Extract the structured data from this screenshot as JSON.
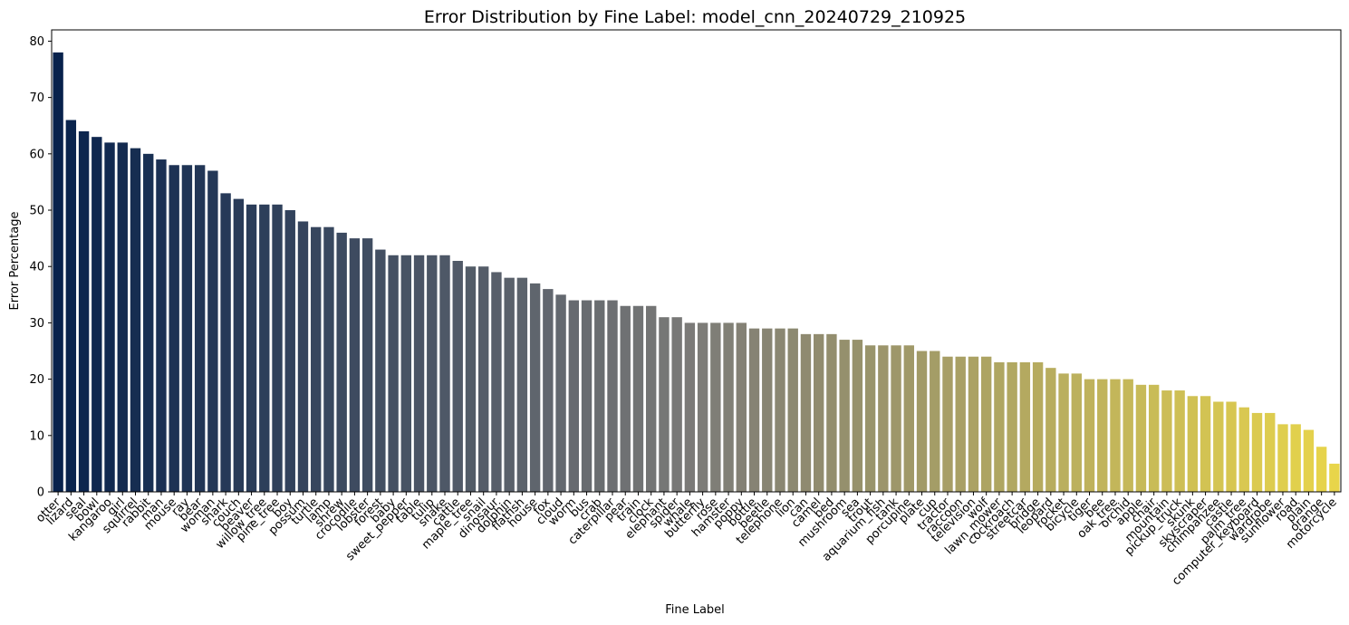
{
  "chart_data": {
    "type": "bar",
    "title": "Error Distribution by Fine Label: model_cnn_20240729_210925",
    "xlabel": "Fine Label",
    "ylabel": "Error Percentage",
    "ylim": [
      0,
      82
    ],
    "yticks": [
      0,
      10,
      20,
      30,
      40,
      50,
      60,
      70,
      80
    ],
    "grid": false,
    "colormap": {
      "start": "#08224c",
      "mid": "#7c7b78",
      "end": "#e8d54a"
    },
    "categories": [
      "otter",
      "lizard",
      "seal",
      "bowl",
      "kangaroo",
      "girl",
      "squirrel",
      "rabbit",
      "man",
      "mouse",
      "ray",
      "bear",
      "woman",
      "shark",
      "couch",
      "beaver",
      "willow_tree",
      "pine_tree",
      "boy",
      "possum",
      "turtle",
      "lamp",
      "shrew",
      "crocodile",
      "lobster",
      "forest",
      "baby",
      "sweet_pepper",
      "table",
      "tulip",
      "snake",
      "cattle",
      "maple_tree",
      "snail",
      "dinosaur",
      "dolphin",
      "flatfish",
      "house",
      "fox",
      "cloud",
      "worm",
      "bus",
      "crab",
      "caterpillar",
      "pear",
      "train",
      "clock",
      "elephant",
      "spider",
      "whale",
      "butterfly",
      "rose",
      "hamster",
      "poppy",
      "bottle",
      "beetle",
      "telephone",
      "lion",
      "can",
      "camel",
      "bed",
      "mushroom",
      "sea",
      "trout",
      "aquarium_fish",
      "tank",
      "porcupine",
      "plate",
      "cup",
      "tractor",
      "raccoon",
      "television",
      "wolf",
      "lawn_mower",
      "cockroach",
      "streetcar",
      "bridge",
      "leopard",
      "rocket",
      "bicycle",
      "tiger",
      "bee",
      "oak_tree",
      "orchid",
      "apple",
      "chair",
      "mountain",
      "pickup_truck",
      "skunk",
      "skyscraper",
      "chimpanzee",
      "castle",
      "palm_tree",
      "computer_keyboard",
      "wardrobe",
      "sunflower",
      "road",
      "plain",
      "orange",
      "motorcycle"
    ],
    "values": [
      78,
      66,
      64,
      63,
      62,
      62,
      61,
      60,
      59,
      58,
      58,
      58,
      57,
      53,
      52,
      51,
      51,
      51,
      50,
      48,
      47,
      47,
      46,
      45,
      45,
      43,
      42,
      42,
      42,
      42,
      42,
      41,
      40,
      40,
      39,
      38,
      38,
      37,
      36,
      35,
      34,
      34,
      34,
      34,
      33,
      33,
      33,
      31,
      31,
      30,
      30,
      30,
      30,
      30,
      29,
      29,
      29,
      29,
      28,
      28,
      28,
      27,
      27,
      26,
      26,
      26,
      26,
      25,
      25,
      24,
      24,
      24,
      24,
      23,
      23,
      23,
      23,
      22,
      21,
      21,
      20,
      20,
      20,
      20,
      19,
      19,
      18,
      18,
      17,
      17,
      16,
      16,
      15,
      14,
      14,
      12,
      12,
      11,
      8,
      5
    ]
  }
}
